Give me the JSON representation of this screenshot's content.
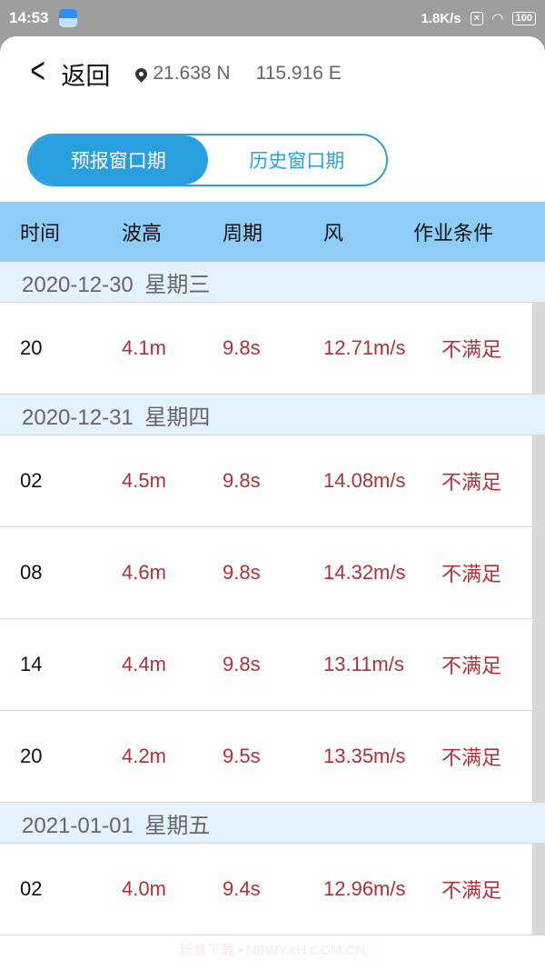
{
  "status": {
    "time": "14:53",
    "speed": "1.8K/s",
    "sim": "×",
    "battery": "100"
  },
  "header": {
    "back_label": "返回",
    "lat": "21.638 N",
    "lon": "115.916 E"
  },
  "tabs": [
    {
      "label": "预报窗口期",
      "active": true
    },
    {
      "label": "历史窗口期",
      "active": false
    }
  ],
  "columns": [
    "时间",
    "波高",
    "周期",
    "风",
    "作业条件"
  ],
  "groups": [
    {
      "date": "2020-12-30 星期三",
      "rows": [
        [
          "20",
          "4.1m",
          "9.8s",
          "12.71m/s",
          "不满足"
        ]
      ]
    },
    {
      "date": "2020-12-31 星期四",
      "rows": [
        [
          "02",
          "4.5m",
          "9.8s",
          "14.08m/s",
          "不满足"
        ],
        [
          "08",
          "4.6m",
          "9.8s",
          "14.32m/s",
          "不满足"
        ],
        [
          "14",
          "4.4m",
          "9.8s",
          "13.11m/s",
          "不满足"
        ],
        [
          "20",
          "4.2m",
          "9.5s",
          "13.35m/s",
          "不满足"
        ]
      ]
    },
    {
      "date": "2021-01-01 星期五",
      "rows": [
        [
          "02",
          "4.0m",
          "9.4s",
          "12.96m/s",
          "不满足"
        ]
      ]
    }
  ],
  "watermark": "玩意下载 • NBWYXH.COM.CN",
  "colors": {
    "accent": "#2a9fe0",
    "header_bg": "#8fcdf9",
    "value": "#b0303a"
  }
}
